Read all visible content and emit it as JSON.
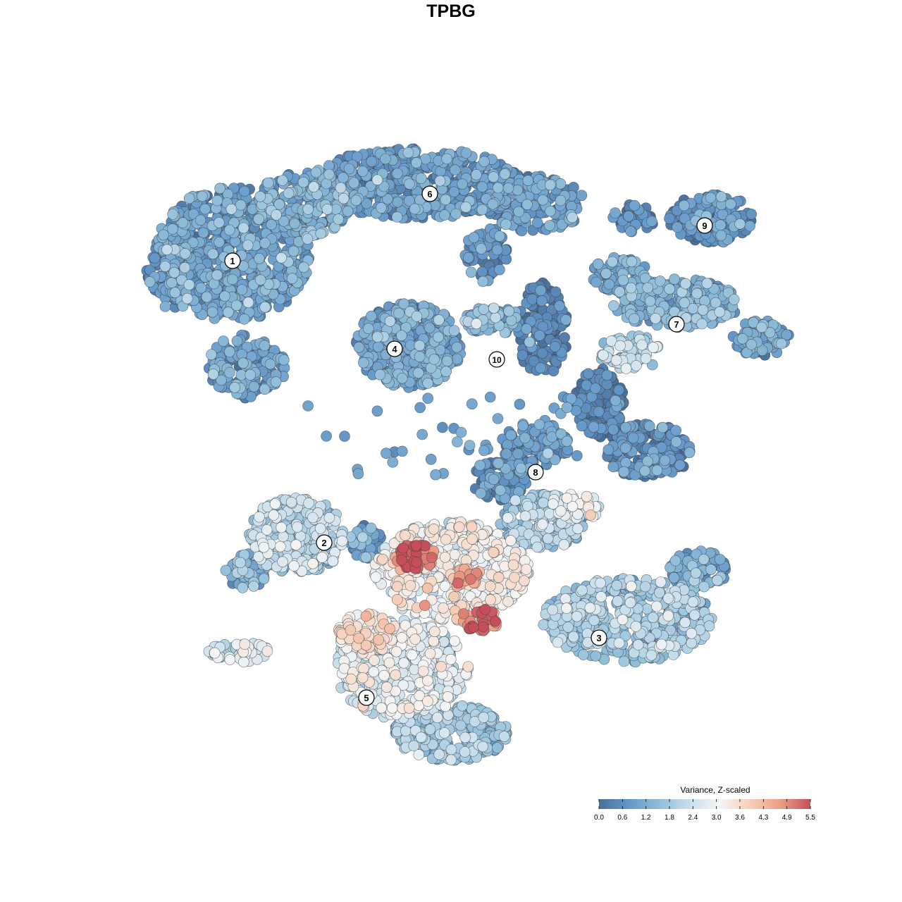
{
  "chart_data": {
    "type": "scatter",
    "title": "TPBG",
    "xlabel": "",
    "ylabel": "",
    "axes_visible": false,
    "grid": false,
    "colorbar": {
      "title": "Variance, Z-scaled",
      "min": 0.0,
      "max": 5.5,
      "ticks": [
        "0.0",
        "0.6",
        "1.2",
        "1.8",
        "2.4",
        "3.0",
        "3.6",
        "4.3",
        "4.9",
        "5.5"
      ],
      "placement": "bottom-right",
      "colors": [
        "#4a6f9b",
        "#6498c9",
        "#8fbdd9",
        "#c8dfec",
        "#f5f5f5",
        "#f6cfb9",
        "#ec9f85",
        "#c64e5a"
      ]
    },
    "clusters": [
      {
        "label": "1",
        "x": -6.2,
        "y": 5.4,
        "level": 0.9
      },
      {
        "label": "2",
        "x": -3.6,
        "y": -2.6,
        "level": 2.1
      },
      {
        "label": "3",
        "x": 4.2,
        "y": -5.3,
        "level": 1.8
      },
      {
        "label": "4",
        "x": -1.6,
        "y": 2.9,
        "level": 1.0
      },
      {
        "label": "5",
        "x": -2.4,
        "y": -7.0,
        "level": 2.3
      },
      {
        "label": "6",
        "x": -0.6,
        "y": 7.3,
        "level": 0.8
      },
      {
        "label": "7",
        "x": 6.4,
        "y": 3.6,
        "level": 1.1
      },
      {
        "label": "8",
        "x": 2.4,
        "y": -0.6,
        "level": 0.4
      },
      {
        "label": "9",
        "x": 7.2,
        "y": 6.4,
        "level": 0.6
      },
      {
        "label": "10",
        "x": 1.3,
        "y": 2.6,
        "level": 0.2
      }
    ],
    "hot_spots": [
      {
        "x": -2.1,
        "y": -3.6,
        "level": 5.3
      },
      {
        "x": 0.4,
        "y": -5.4,
        "level": 5.2
      },
      {
        "x": -0.8,
        "y": -4.4,
        "level": 4.5
      }
    ]
  }
}
